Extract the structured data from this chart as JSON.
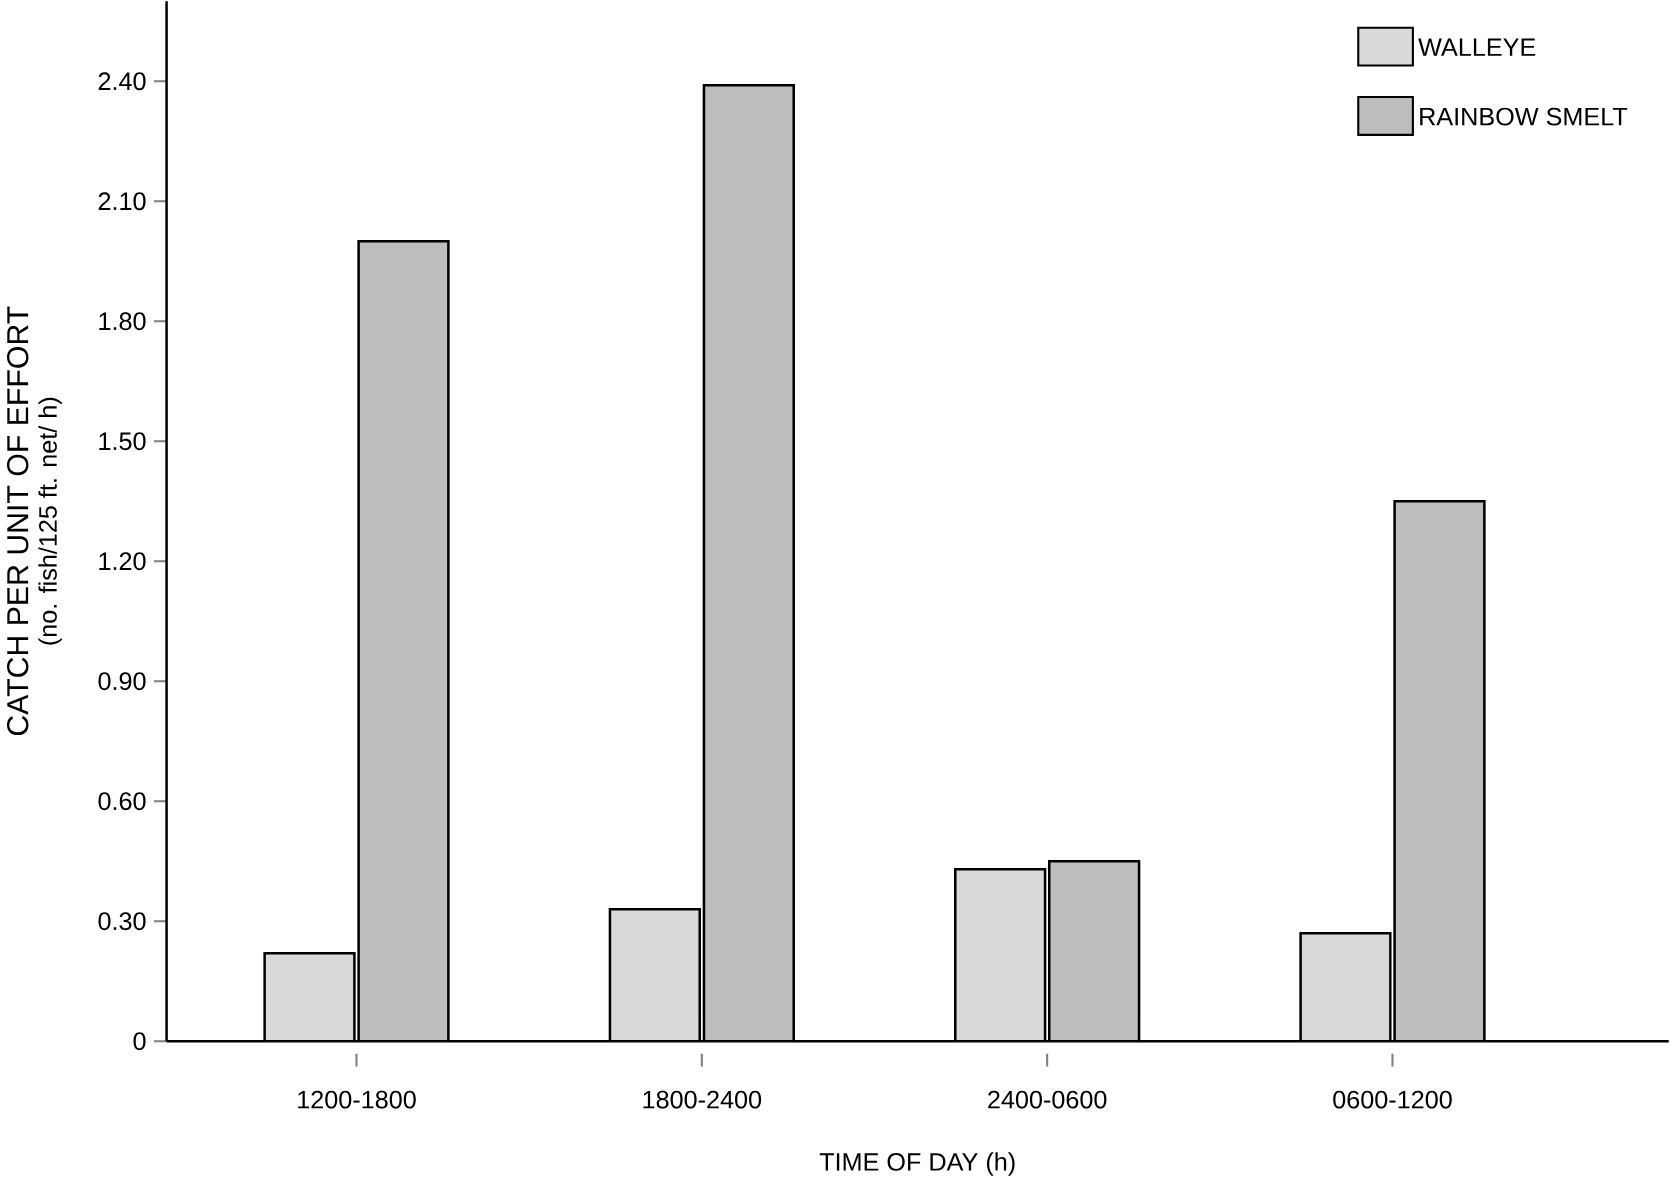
{
  "chart_data": {
    "type": "bar",
    "xlabel": "TIME OF DAY (h)",
    "ylabel": "CATCH PER UNIT OF EFFORT",
    "annotations": [
      "(no. fish/125 ft. net/ h)"
    ],
    "categories": [
      "1200-1800",
      "1800-2400",
      "2400-0600",
      "0600-1200"
    ],
    "series": [
      {
        "name": "WALLEYE",
        "color": "#d9d9d9",
        "values": [
          0.22,
          0.33,
          0.43,
          0.27
        ]
      },
      {
        "name": "RAINBOW SMELT",
        "color": "#bdbdbd",
        "values": [
          2.0,
          2.39,
          0.45,
          1.35
        ]
      }
    ],
    "ylim": [
      0,
      2.6
    ],
    "yticks": [
      0,
      {
        "value": 0.3,
        "label": "0.30"
      },
      {
        "value": 0.6,
        "label": "0.60"
      },
      {
        "value": 0.9,
        "label": "0.90"
      },
      {
        "value": 1.2,
        "label": "1.20"
      },
      {
        "value": 1.5,
        "label": "1.50"
      },
      {
        "value": 1.8,
        "label": "1.80"
      },
      {
        "value": 2.1,
        "label": "2.10"
      },
      {
        "value": 2.4,
        "label": "2.40"
      }
    ],
    "grid": false,
    "legend": "top right"
  }
}
